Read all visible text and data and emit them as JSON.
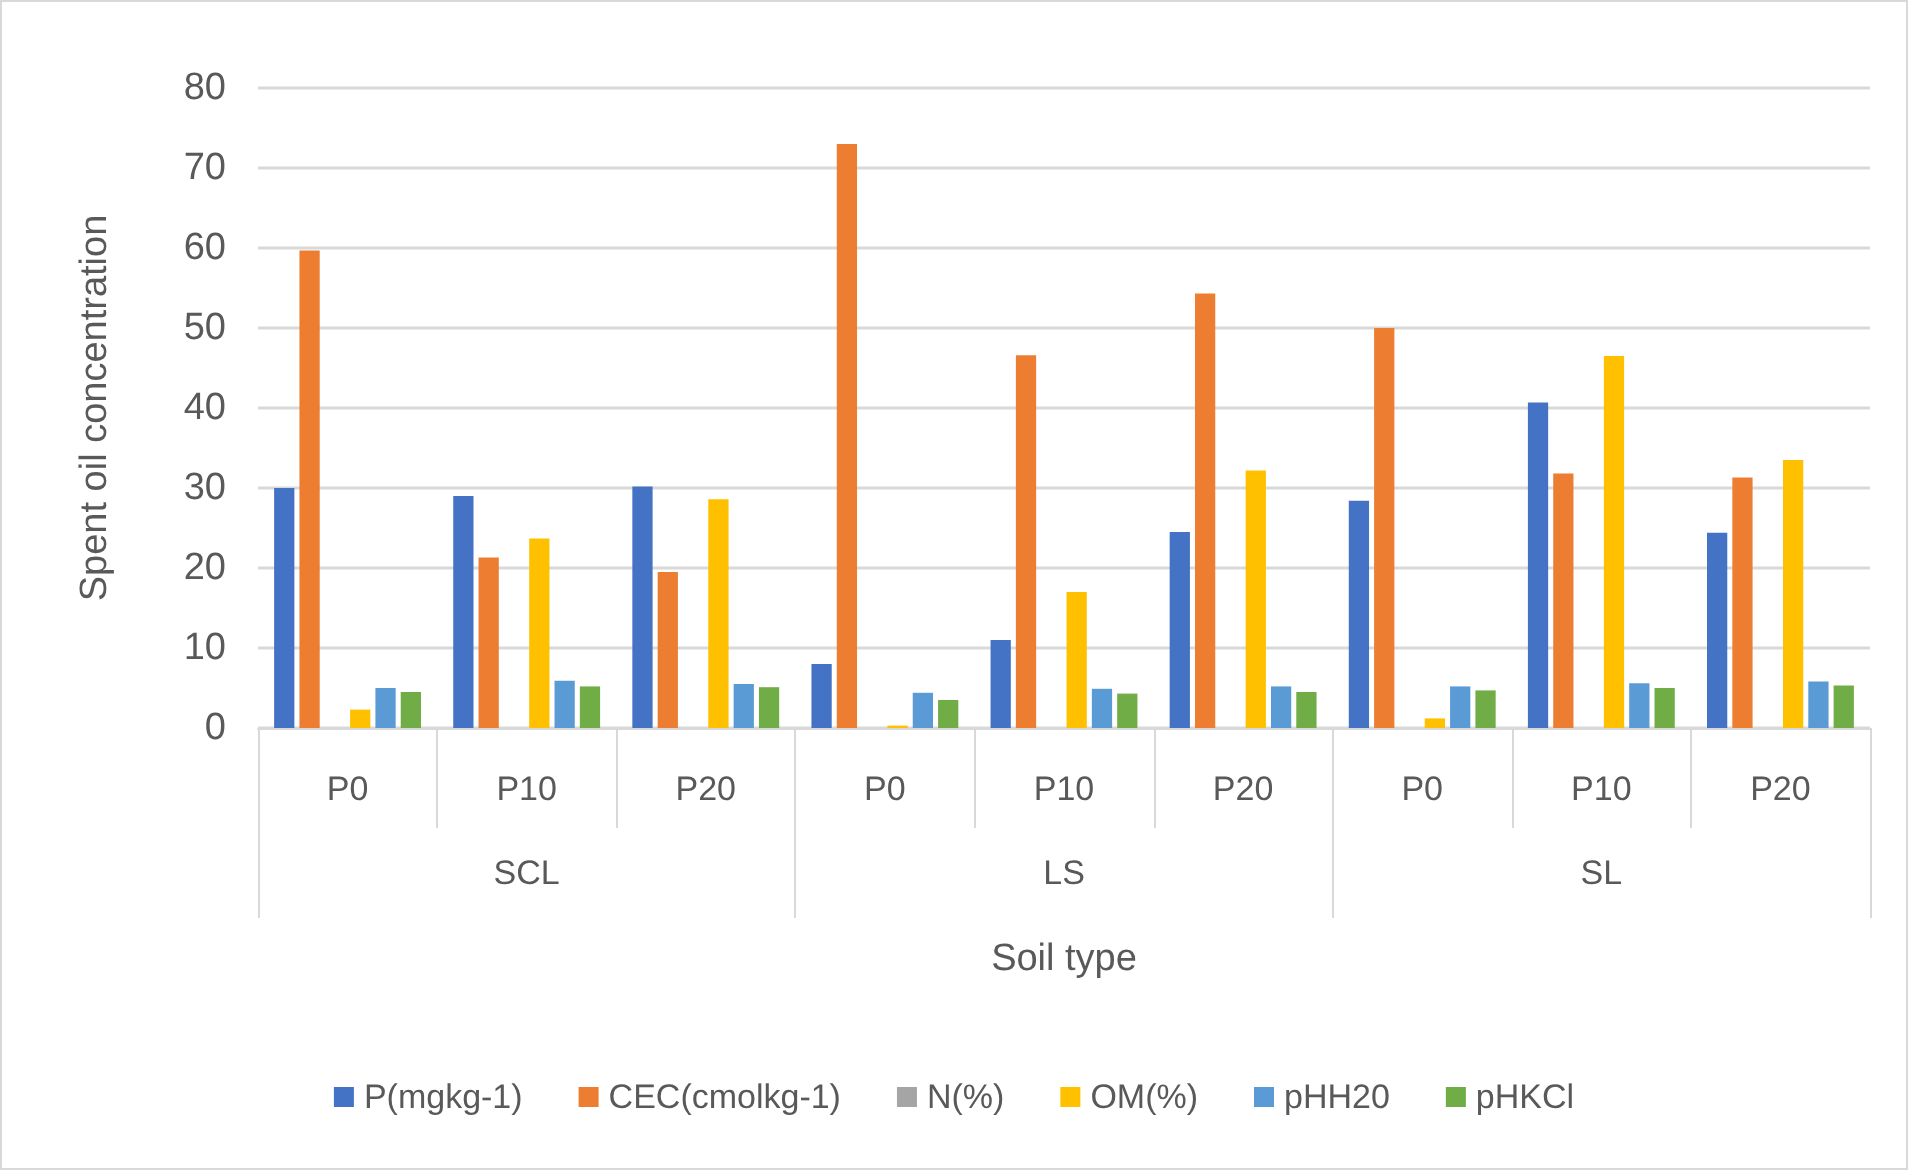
{
  "chart_data": {
    "type": "bar",
    "xlabel": "Soil type",
    "ylabel": "Spent oil concentration",
    "categories": [
      "P0",
      "P10",
      "P20",
      "P0",
      "P10",
      "P20",
      "P0",
      "P10",
      "P20"
    ],
    "annotations": [
      "SCL",
      "LS",
      "SL"
    ],
    "series": [
      {
        "name": "P(mgkg-1)",
        "color": "#4472c4",
        "values": [
          30,
          29,
          30.2,
          8,
          11,
          24.5,
          28.4,
          40.7,
          24.4
        ]
      },
      {
        "name": "CEC(cmolkg-1)",
        "color": "#ed7d31",
        "values": [
          59.7,
          21.3,
          19.5,
          73,
          46.6,
          54.3,
          50,
          31.8,
          31.3
        ]
      },
      {
        "name": "N(%)",
        "color": "#a5a5a5",
        "values": [
          null,
          null,
          null,
          null,
          null,
          null,
          null,
          null,
          null
        ]
      },
      {
        "name": "OM(%)",
        "color": "#ffc000",
        "values": [
          2.3,
          23.7,
          28.6,
          0.3,
          17,
          32.2,
          1.2,
          46.5,
          33.5
        ]
      },
      {
        "name": "pHH20",
        "color": "#5b9bd5",
        "values": [
          5,
          5.9,
          5.5,
          4.4,
          4.9,
          5.2,
          5.2,
          5.6,
          5.8
        ]
      },
      {
        "name": "pHKCl",
        "color": "#70ad47",
        "values": [
          4.5,
          5.2,
          5.1,
          3.5,
          4.3,
          4.5,
          4.7,
          5,
          5.3
        ]
      }
    ],
    "ylim": [
      0,
      80
    ],
    "yticks": [
      0,
      10,
      20,
      30,
      40,
      50,
      60,
      70,
      80
    ],
    "grid": "y",
    "legend": "bottom"
  }
}
